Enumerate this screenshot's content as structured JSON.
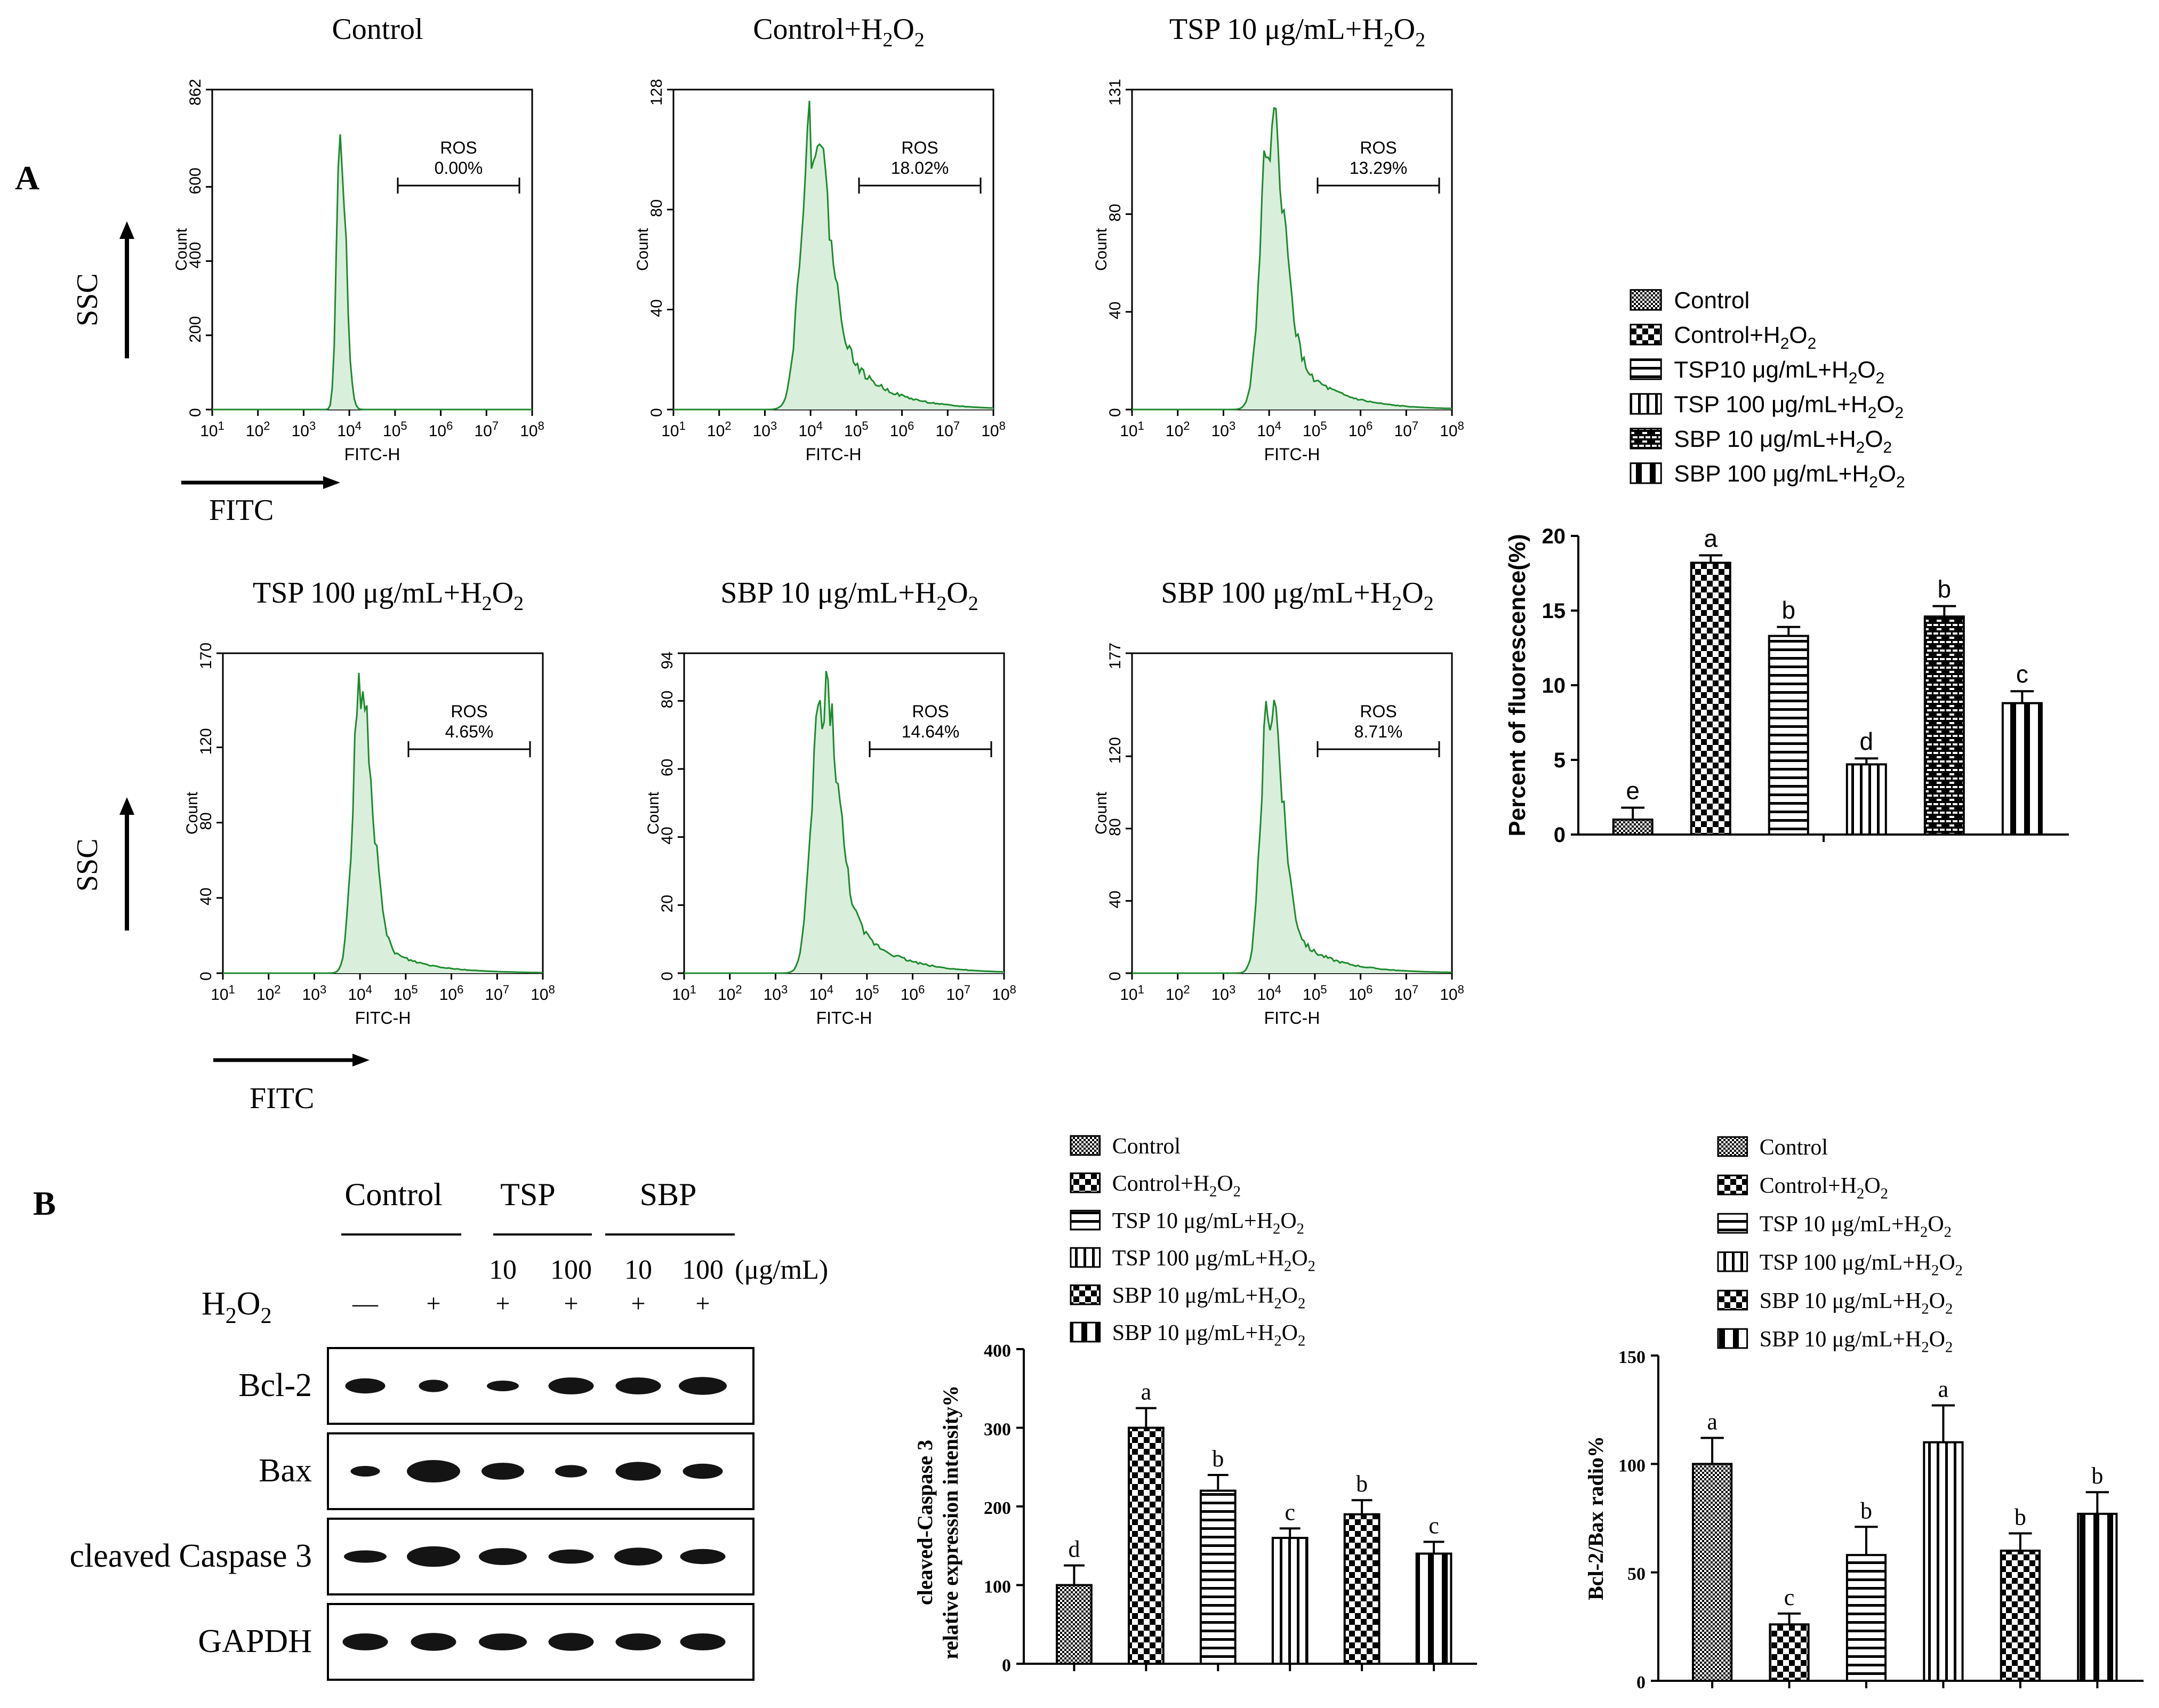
{
  "panel_labels": {
    "a": "A",
    "b": "B"
  },
  "flow": {
    "ssc_label": "SSC",
    "fitc_label": "FITC",
    "y_axis_label": "Count",
    "x_axis_label": "FITC-H",
    "gate_label": "ROS",
    "x_ticks": [
      "1",
      "2",
      "3",
      "4",
      "5",
      "6",
      "7",
      "8"
    ],
    "plots": [
      {
        "title": "Control",
        "sub": "",
        "ymax": "862",
        "yticks": [
          0,
          200,
          400,
          600
        ],
        "ros": "0.00%",
        "peak": 3.8,
        "width": 0.12,
        "tail": 0.0
      },
      {
        "title": "Control+H",
        "sub": "2",
        "ymax": "128",
        "yticks": [
          0,
          40,
          80
        ],
        "ros": "18.02%",
        "peak": 4.0,
        "width": 0.35,
        "tail": 1.0
      },
      {
        "title": "TSP 10 μg/mL+H",
        "sub": "2",
        "ymax": "131",
        "yticks": [
          0,
          40,
          80
        ],
        "ros": "13.29%",
        "peak": 4.0,
        "width": 0.3,
        "tail": 0.7
      },
      {
        "title": "TSP 100 μg/mL+H",
        "sub": "2",
        "ymax": "170",
        "yticks": [
          0,
          40,
          80,
          120
        ],
        "ros": "4.65%",
        "peak": 4.0,
        "width": 0.25,
        "tail": 0.35
      },
      {
        "title": "SBP 10 μg/mL+H",
        "sub": "2",
        "ymax": "94",
        "yticks": [
          0,
          20,
          40,
          60,
          80
        ],
        "ros": "14.64%",
        "peak": 4.0,
        "width": 0.32,
        "tail": 0.85
      },
      {
        "title": "SBP 100 μg/mL+H",
        "sub": "2",
        "ymax": "177",
        "yticks": [
          0,
          40,
          80,
          120
        ],
        "ros": "8.71%",
        "peak": 4.0,
        "width": 0.27,
        "tail": 0.5
      }
    ]
  },
  "legend_a": [
    {
      "text": "Control",
      "sub": "",
      "pattern": "fine"
    },
    {
      "text": "Control+H",
      "sub": "2",
      "pattern": "check"
    },
    {
      "text": "TSP10 μg/mL+H",
      "sub": "2",
      "pattern": "hline"
    },
    {
      "text": "TSP 100 μg/mL+H",
      "sub": "2",
      "pattern": "vline"
    },
    {
      "text": "SBP 10 μg/mL+H",
      "sub": "2",
      "pattern": "brick"
    },
    {
      "text": "SBP 100 μg/mL+H",
      "sub": "2",
      "pattern": "vthick"
    }
  ],
  "legend_b": [
    {
      "text": "Control",
      "sub": "",
      "pattern": "fine"
    },
    {
      "text": "Control+H",
      "sub": "2",
      "pattern": "check"
    },
    {
      "text": "TSP 10 μg/mL+H",
      "sub": "2",
      "pattern": "hline"
    },
    {
      "text": "TSP 100 μg/mL+H",
      "sub": "2",
      "pattern": "vline"
    },
    {
      "text": "SBP 10 μg/mL+H",
      "sub": "2",
      "pattern": "check"
    },
    {
      "text": "SBP 10 μg/mL+H",
      "sub": "2",
      "pattern": "vthick"
    }
  ],
  "western": {
    "groups": [
      "Control",
      "TSP",
      "SBP"
    ],
    "doses": [
      "10",
      "100",
      "10",
      "100"
    ],
    "dose_unit": "(μg/mL)",
    "h2o2_label": "H",
    "h2o2_sub": "2",
    "h2o2_signs": [
      "—",
      "+",
      "+",
      "+",
      "+",
      "+"
    ],
    "bands": [
      {
        "label": "Bcl-2",
        "widths": [
          0.75,
          0.55,
          0.6,
          0.85,
          0.85,
          0.9
        ],
        "heights": [
          0.6,
          0.45,
          0.35,
          0.7,
          0.7,
          0.75
        ]
      },
      {
        "label": "Bax",
        "widths": [
          0.55,
          1.0,
          0.8,
          0.6,
          0.85,
          0.75
        ],
        "heights": [
          0.35,
          1.0,
          0.7,
          0.45,
          0.8,
          0.6
        ]
      },
      {
        "label": "cleaved Caspase 3",
        "widths": [
          0.8,
          1.0,
          0.9,
          0.85,
          0.9,
          0.85
        ],
        "heights": [
          0.45,
          0.9,
          0.7,
          0.55,
          0.75,
          0.6
        ]
      },
      {
        "label": "GAPDH",
        "widths": [
          0.85,
          0.85,
          0.9,
          0.85,
          0.85,
          0.85
        ],
        "heights": [
          0.7,
          0.75,
          0.7,
          0.75,
          0.7,
          0.7
        ]
      }
    ]
  },
  "chart_data": [
    {
      "type": "bar",
      "id": "ros",
      "ylabel": "Percent of fluorescence(%)",
      "categories": [
        "Control",
        "Control+H2O2",
        "TSP10 μg/mL+H2O2",
        "TSP 100 μg/mL+H2O2",
        "SBP 10 μg/mL+H2O2",
        "SBP 100 μg/mL+H2O2"
      ],
      "values": [
        1.0,
        18.2,
        13.3,
        4.7,
        14.6,
        8.8
      ],
      "errors": [
        0.8,
        0.5,
        0.6,
        0.4,
        0.7,
        0.8
      ],
      "letters": [
        "e",
        "a",
        "b",
        "d",
        "b",
        "c"
      ],
      "patterns": [
        "fine",
        "check",
        "hline",
        "vline",
        "brick",
        "vthick"
      ],
      "ylim": [
        0,
        20
      ],
      "yticks": [
        0,
        5,
        10,
        15,
        20
      ]
    },
    {
      "type": "bar",
      "id": "caspase",
      "ylabel_lines": [
        "cleaved-Caspase 3",
        "relative expression intensity%"
      ],
      "categories": [
        "Control",
        "Control+H2O2",
        "TSP 10 μg/mL+H2O2",
        "TSP 100 μg/mL+H2O2",
        "SBP 10 μg/mL+H2O2",
        "SBP 10 μg/mL+H2O2"
      ],
      "values": [
        100,
        300,
        220,
        160,
        190,
        140
      ],
      "errors": [
        25,
        25,
        20,
        12,
        18,
        15
      ],
      "letters": [
        "d",
        "a",
        "b",
        "c",
        "b",
        "c"
      ],
      "patterns": [
        "fine",
        "check",
        "hline",
        "vline",
        "check",
        "vthick"
      ],
      "ylim": [
        0,
        400
      ],
      "yticks": [
        0,
        100,
        200,
        300,
        400
      ]
    },
    {
      "type": "bar",
      "id": "bclbax",
      "ylabel": "Bcl-2/Bax radio%",
      "categories": [
        "Control",
        "Control+H2O2",
        "TSP 10 μg/mL+H2O2",
        "TSP 100 μg/mL+H2O2",
        "SBP 10 μg/mL+H2O2",
        "SBP 10 μg/mL+H2O2"
      ],
      "values": [
        100,
        26,
        58,
        110,
        60,
        77
      ],
      "errors": [
        12,
        5,
        13,
        17,
        8,
        10
      ],
      "letters": [
        "a",
        "c",
        "b",
        "a",
        "b",
        "b"
      ],
      "patterns": [
        "fine",
        "check",
        "hline",
        "vline",
        "check",
        "vthick"
      ],
      "ylim": [
        0,
        150
      ],
      "yticks": [
        0,
        50,
        100,
        150
      ]
    }
  ],
  "colors": {
    "flow_line": "#1e8a2e",
    "flow_fill": "#d9efdc",
    "ink": "#000000",
    "band": "#141414"
  }
}
